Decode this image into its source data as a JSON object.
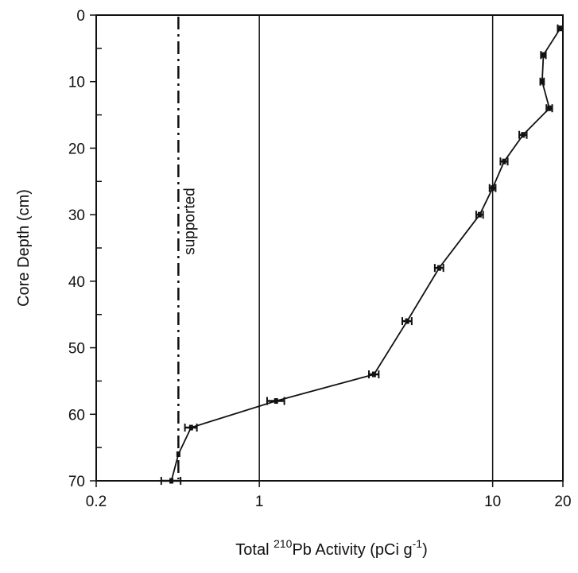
{
  "chart_data": {
    "type": "scatter",
    "x_scale": "log",
    "xlim": [
      0.2,
      20
    ],
    "ylim": [
      0,
      70
    ],
    "y_inverted": true,
    "grid": "vertical lines at 1 and 10",
    "xlabel_parts": [
      "Total ",
      "210",
      "Pb Activity (pCi g",
      "-1",
      ")"
    ],
    "ylabel": "Core Depth (cm)",
    "x_ticks": [
      {
        "value": 0.2,
        "label": "0.2"
      },
      {
        "value": 1,
        "label": "1"
      },
      {
        "value": 10,
        "label": "10"
      },
      {
        "value": 20,
        "label": "20"
      }
    ],
    "y_ticks": [
      {
        "value": 0,
        "label": "0"
      },
      {
        "value": 10,
        "label": "10"
      },
      {
        "value": 20,
        "label": "20"
      },
      {
        "value": 30,
        "label": "30"
      },
      {
        "value": 40,
        "label": "40"
      },
      {
        "value": 50,
        "label": "50"
      },
      {
        "value": 60,
        "label": "60"
      },
      {
        "value": 70,
        "label": "70"
      }
    ],
    "series": [
      {
        "points": [
          {
            "x": 19.5,
            "y": 2,
            "err": 0.5
          },
          {
            "x": 16.5,
            "y": 6,
            "err": 0.4
          },
          {
            "x": 16.3,
            "y": 10,
            "err": 0.3
          },
          {
            "x": 17.5,
            "y": 14,
            "err": 0.5
          },
          {
            "x": 13.5,
            "y": 18,
            "err": 0.5
          },
          {
            "x": 11.2,
            "y": 22,
            "err": 0.4
          },
          {
            "x": 10.0,
            "y": 26,
            "err": 0.3
          },
          {
            "x": 8.8,
            "y": 30,
            "err": 0.3
          },
          {
            "x": 5.9,
            "y": 38,
            "err": 0.25
          },
          {
            "x": 4.3,
            "y": 46,
            "err": 0.2
          },
          {
            "x": 3.1,
            "y": 54,
            "err": 0.15
          },
          {
            "x": 1.18,
            "y": 58,
            "err": 0.1
          },
          {
            "x": 0.51,
            "y": 62,
            "err": 0.03
          },
          {
            "x": 0.45,
            "y": 66,
            "err": 0
          },
          {
            "x": 0.42,
            "y": 70,
            "err": 0.04
          }
        ]
      }
    ],
    "supported": {
      "x": 0.45,
      "label": "supported",
      "style": "dash-dot"
    }
  }
}
